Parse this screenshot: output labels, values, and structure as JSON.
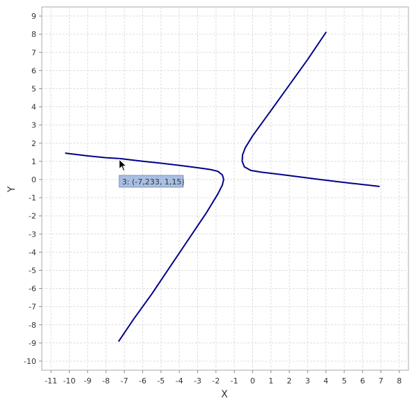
{
  "colors": {
    "series": "#00008b",
    "grid": "#dddddd",
    "tooltip_fill": "#a9bfe2",
    "tooltip_border": "#7a96c2"
  },
  "tooltip": {
    "text": "3: (-7,233, 1,15)",
    "x": -7.233,
    "y": 1.15
  },
  "chart_data": {
    "type": "line",
    "title": "",
    "xlabel": "X",
    "ylabel": "Y",
    "xlim": [
      -11.5,
      8.5
    ],
    "ylim": [
      -10.5,
      9.5
    ],
    "x_ticks": [
      -11,
      -10,
      -9,
      -8,
      -7,
      -6,
      -5,
      -4,
      -3,
      -2,
      -1,
      0,
      1,
      2,
      3,
      4,
      5,
      6,
      7,
      8
    ],
    "y_ticks": [
      9,
      8,
      7,
      6,
      5,
      4,
      3,
      2,
      1,
      0,
      -1,
      -2,
      -3,
      -4,
      -5,
      -6,
      -7,
      -8,
      -9,
      -10
    ],
    "grid": true,
    "series": [
      {
        "points": [
          [
            -10.2,
            1.45
          ],
          [
            -9.0,
            1.3
          ],
          [
            -8.0,
            1.2
          ],
          [
            -7.233,
            1.15
          ],
          [
            -6.0,
            1.0
          ],
          [
            -5.0,
            0.9
          ],
          [
            -4.0,
            0.78
          ],
          [
            -3.0,
            0.65
          ],
          [
            -2.3,
            0.55
          ],
          [
            -1.9,
            0.45
          ],
          [
            -1.65,
            0.25
          ],
          [
            -1.58,
            0.0
          ],
          [
            -1.65,
            -0.3
          ],
          [
            -1.9,
            -0.8
          ],
          [
            -2.5,
            -1.8
          ],
          [
            -3.5,
            -3.3
          ],
          [
            -4.5,
            -4.8
          ],
          [
            -5.5,
            -6.3
          ],
          [
            -6.5,
            -7.7
          ],
          [
            -7.3,
            -8.9
          ]
        ]
      },
      {
        "points": [
          [
            4.0,
            8.1
          ],
          [
            3.0,
            6.6
          ],
          [
            2.0,
            5.2
          ],
          [
            1.0,
            3.8
          ],
          [
            0.0,
            2.4
          ],
          [
            -0.4,
            1.75
          ],
          [
            -0.55,
            1.35
          ],
          [
            -0.57,
            1.0
          ],
          [
            -0.45,
            0.7
          ],
          [
            -0.1,
            0.5
          ],
          [
            0.5,
            0.4
          ],
          [
            1.5,
            0.28
          ],
          [
            2.5,
            0.15
          ],
          [
            3.5,
            0.02
          ],
          [
            4.5,
            -0.1
          ],
          [
            5.5,
            -0.22
          ],
          [
            6.5,
            -0.33
          ],
          [
            6.9,
            -0.38
          ]
        ]
      }
    ]
  }
}
